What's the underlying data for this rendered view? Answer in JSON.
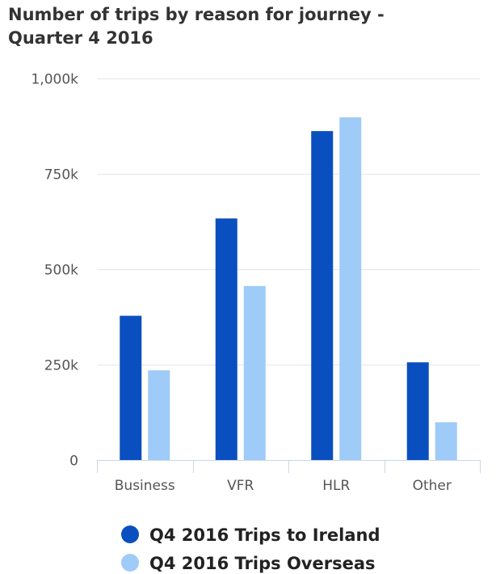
{
  "chart_data": {
    "type": "bar",
    "title_lines": [
      "Number of trips by reason for journey -",
      "Quarter 4 2016"
    ],
    "categories": [
      "Business",
      "VFR",
      "HLR",
      "Other"
    ],
    "series": [
      {
        "name": "Q4 2016 Trips to Ireland",
        "color": "#0a4fbf",
        "values": [
          378000,
          633000,
          862000,
          256000
        ]
      },
      {
        "name": "Q4 2016 Trips Overseas",
        "color": "#9ecbf7",
        "values": [
          235000,
          456000,
          898000,
          99000
        ]
      }
    ],
    "ylim": [
      0,
      1000000
    ],
    "yticks": [
      {
        "value": 0,
        "label": "0"
      },
      {
        "value": 250000,
        "label": "250k"
      },
      {
        "value": 500000,
        "label": "500k"
      },
      {
        "value": 750000,
        "label": "750k"
      },
      {
        "value": 1000000,
        "label": "1,000k"
      }
    ],
    "grid": true,
    "legend_placement": "bottom"
  }
}
